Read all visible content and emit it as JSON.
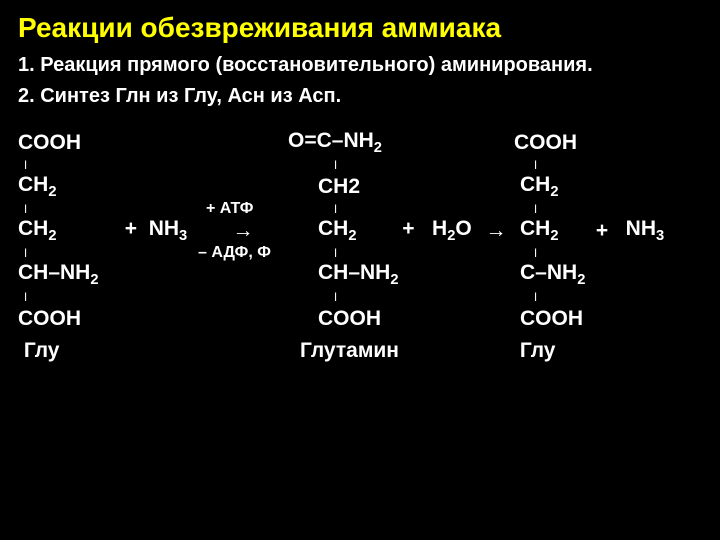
{
  "title": "Реакции обезвреживания аммиака",
  "subtitle1": "1. Реакция прямого (восстановительного) аминирования.",
  "subtitle2": "2. Синтез Глн из Глу, Асн из Асп.",
  "reaction": {
    "col1": {
      "r1": "COOH",
      "r2": "ǀ",
      "r3": "CH₂",
      "r4": "ǀ",
      "r5": "CH₂",
      "r6": "ǀ",
      "r7": "CH–NH₂",
      "r8": "ǀ",
      "r9": "COOH",
      "label": " Глу"
    },
    "col2": {
      "r5": "+  NH₃"
    },
    "col3": {
      "r4": "+ АТФ",
      "r5": "→",
      "r6": "–  АДФ, Ф"
    },
    "col4": {
      "r1": "O=C–NH₂",
      "r2": "ǀ",
      "r3": "CH2",
      "r4": "ǀ",
      "r5": "CH₂",
      "r6": "ǀ",
      "r7": "CH–NH₂",
      "r8": "ǀ",
      "r9": "COOH",
      "label": "Глутамин"
    },
    "col5": {
      "r5": "+   H₂O"
    },
    "col6": {
      "r5": "→"
    },
    "col7": {
      "r1": "COOH",
      "r2": "ǀ",
      "r3": "CH₂",
      "r4": "ǀ",
      "r5": "CH₂",
      "r6": "ǀ",
      "r7": "C–NH₂",
      "r8": "ǀ",
      "r9": "COOH",
      "label": " Глу"
    },
    "col8": {
      "r5": "+"
    },
    "col9": {
      "r5": "  NH₃"
    }
  },
  "colors": {
    "bg": "#000000",
    "title": "#ffff00",
    "text": "#ffffff"
  }
}
